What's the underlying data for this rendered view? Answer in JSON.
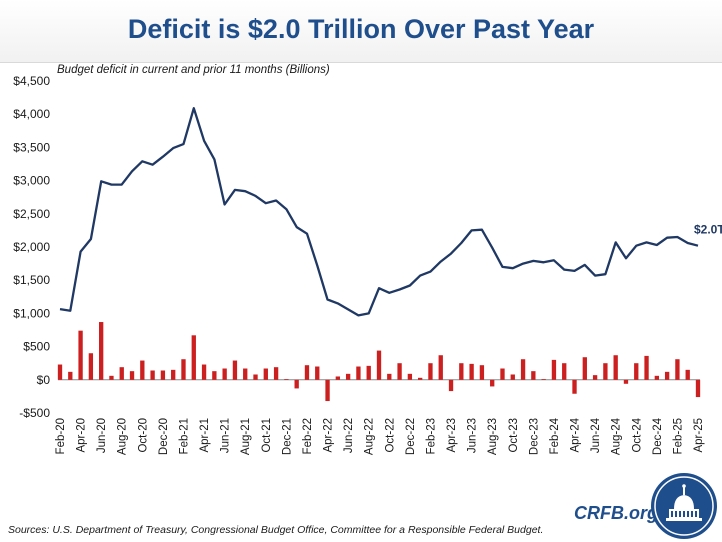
{
  "header": {
    "title": "Deficit is $2.0 Trillion Over Past Year",
    "subtitle": "Budget deficit in current and prior 11 months (Billions)"
  },
  "footer": {
    "sources": "Sources: U.S. Department of Treasury, Congressional Budget Office, Committee for a Responsible Federal Budget.",
    "brand": "CRFB.org"
  },
  "colors": {
    "line": "#1f3864",
    "bar": "#cc1f1f",
    "title": "#1f4e8c"
  },
  "chart_data": {
    "type": "line",
    "ylim": [
      -500,
      4500
    ],
    "yticks": [
      -500,
      0,
      500,
      1000,
      1500,
      2000,
      2500,
      3000,
      3500,
      4000,
      4500
    ],
    "ytick_labels": [
      "-$500",
      "$0",
      "$500",
      "$1,000",
      "$1,500",
      "$2,000",
      "$2,500",
      "$3,000",
      "$3,500",
      "$4,000",
      "$4,500"
    ],
    "x": [
      "Feb-20",
      "Mar-20",
      "Apr-20",
      "May-20",
      "Jun-20",
      "Jul-20",
      "Aug-20",
      "Sep-20",
      "Oct-20",
      "Nov-20",
      "Dec-20",
      "Jan-21",
      "Feb-21",
      "Mar-21",
      "Apr-21",
      "May-21",
      "Jun-21",
      "Jul-21",
      "Aug-21",
      "Sep-21",
      "Oct-21",
      "Nov-21",
      "Dec-21",
      "Jan-22",
      "Feb-22",
      "Mar-22",
      "Apr-22",
      "May-22",
      "Jun-22",
      "Jul-22",
      "Aug-22",
      "Sep-22",
      "Oct-22",
      "Nov-22",
      "Dec-22",
      "Jan-23",
      "Feb-23",
      "Mar-23",
      "Apr-23",
      "May-23",
      "Jun-23",
      "Jul-23",
      "Aug-23",
      "Sep-23",
      "Oct-23",
      "Nov-23",
      "Dec-23",
      "Jan-24",
      "Feb-24",
      "Mar-24",
      "Apr-24",
      "May-24",
      "Jun-24",
      "Jul-24",
      "Aug-24",
      "Sep-24",
      "Oct-24",
      "Nov-24",
      "Dec-24",
      "Jan-25",
      "Feb-25",
      "Mar-25",
      "Apr-25"
    ],
    "xtick_labels": [
      "Feb-20",
      "Apr-20",
      "Jun-20",
      "Aug-20",
      "Oct-20",
      "Dec-20",
      "Feb-21",
      "Apr-21",
      "Jun-21",
      "Aug-21",
      "Oct-21",
      "Dec-21",
      "Feb-22",
      "Apr-22",
      "Jun-22",
      "Aug-22",
      "Oct-22",
      "Dec-22",
      "Feb-23",
      "Apr-23",
      "Jun-23",
      "Aug-23",
      "Oct-23",
      "Dec-23",
      "Feb-24",
      "Apr-24",
      "Jun-24",
      "Aug-24",
      "Oct-24",
      "Dec-24",
      "Feb-25",
      "Apr-25"
    ],
    "series": [
      {
        "type": "line",
        "values": [
          1065,
          1040,
          1930,
          2120,
          2990,
          2940,
          2940,
          3140,
          3290,
          3240,
          3360,
          3490,
          3550,
          4090,
          3600,
          3320,
          2640,
          2860,
          2840,
          2770,
          2660,
          2700,
          2570,
          2300,
          2200,
          1720,
          1210,
          1150,
          1060,
          970,
          1000,
          1380,
          1310,
          1360,
          1420,
          1570,
          1630,
          1780,
          1900,
          2060,
          2250,
          2260,
          1990,
          1700,
          1680,
          1750,
          1790,
          1770,
          1800,
          1660,
          1640,
          1730,
          1570,
          1590,
          2070,
          1830,
          2020,
          2070,
          2030,
          2140,
          2150,
          2060,
          2020
        ]
      },
      {
        "type": "bar",
        "values": [
          230,
          120,
          740,
          400,
          870,
          60,
          190,
          130,
          290,
          140,
          140,
          150,
          310,
          670,
          230,
          130,
          170,
          290,
          170,
          80,
          170,
          190,
          10,
          -130,
          220,
          200,
          -320,
          50,
          90,
          200,
          210,
          440,
          90,
          250,
          90,
          30,
          250,
          370,
          -170,
          250,
          240,
          220,
          -100,
          170,
          80,
          310,
          130,
          10,
          300,
          250,
          -210,
          340,
          70,
          250,
          370,
          -60,
          250,
          360,
          60,
          120,
          310,
          150,
          -260
        ]
      }
    ],
    "annotations": [
      {
        "text": "$2.0T",
        "at": "Apr-25"
      }
    ]
  }
}
